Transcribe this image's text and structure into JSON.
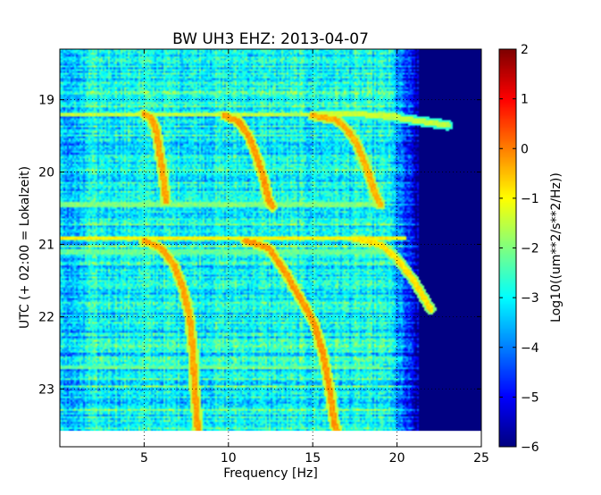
{
  "chart_data": {
    "type": "heatmap",
    "title": "BW UH3 EHZ: 2013-04-07",
    "xlabel": "Frequency [Hz]",
    "ylabel": "UTC (+ 02:00 = Lokalzeit)",
    "xlim": [
      0,
      25
    ],
    "ylim": [
      23.8,
      18.3
    ],
    "x_ticks": [
      5,
      10,
      15,
      20,
      25
    ],
    "y_ticks": [
      19,
      20,
      21,
      22,
      23
    ],
    "grid": true,
    "data_end_time": 23.58,
    "colormap": "jet",
    "colorbar": {
      "label": "Log10((um**2/s**2/Hz))",
      "range": [
        -6,
        2
      ],
      "ticks": [
        2,
        1,
        0,
        -1,
        -2,
        -3,
        -4,
        -5,
        -6
      ]
    },
    "background_level": -3.0,
    "high_freq_cutoff_hz": 19.5,
    "sweep_tracks": [
      {
        "points": [
          [
            5.0,
            19.2
          ],
          [
            5.4,
            19.25
          ],
          [
            5.7,
            19.4
          ],
          [
            5.9,
            19.7
          ],
          [
            6.1,
            20.0
          ],
          [
            6.3,
            20.4
          ]
        ],
        "level": -0.3
      },
      {
        "points": [
          [
            9.8,
            19.22
          ],
          [
            10.6,
            19.3
          ],
          [
            11.2,
            19.5
          ],
          [
            11.7,
            19.8
          ],
          [
            12.1,
            20.1
          ],
          [
            12.4,
            20.4
          ],
          [
            12.6,
            20.48
          ]
        ],
        "level": -0.2
      },
      {
        "points": [
          [
            15.0,
            19.22
          ],
          [
            16.4,
            19.28
          ],
          [
            17.0,
            19.4
          ],
          [
            17.6,
            19.6
          ],
          [
            18.2,
            19.95
          ],
          [
            18.7,
            20.3
          ],
          [
            19.0,
            20.45
          ]
        ],
        "level": -0.4
      },
      {
        "points": [
          [
            5.0,
            20.95
          ],
          [
            6.0,
            21.05
          ],
          [
            6.8,
            21.3
          ],
          [
            7.3,
            21.6
          ],
          [
            7.7,
            22.0
          ],
          [
            7.9,
            22.5
          ],
          [
            8.0,
            23.0
          ],
          [
            8.2,
            23.6
          ]
        ],
        "level": -0.3
      },
      {
        "points": [
          [
            11.0,
            20.95
          ],
          [
            12.4,
            21.05
          ],
          [
            13.4,
            21.4
          ],
          [
            14.4,
            21.8
          ],
          [
            15.1,
            22.1
          ],
          [
            15.6,
            22.5
          ],
          [
            16.0,
            23.0
          ],
          [
            16.3,
            23.5
          ],
          [
            16.5,
            23.6
          ]
        ],
        "level": -0.2
      },
      {
        "points": [
          [
            17.5,
            20.92
          ],
          [
            19.0,
            21.0
          ],
          [
            20.0,
            21.2
          ],
          [
            21.0,
            21.5
          ],
          [
            22.0,
            21.9
          ]
        ],
        "level": -0.8
      },
      {
        "points": [
          [
            15.5,
            19.2
          ],
          [
            18.0,
            19.2
          ],
          [
            20.0,
            19.25
          ],
          [
            21.5,
            19.3
          ],
          [
            23.0,
            19.35
          ]
        ],
        "level": -1.5
      }
    ],
    "horizontal_streaks": [
      {
        "time": 19.2,
        "f_max": 20.0,
        "level": -1.5
      },
      {
        "time": 20.45,
        "f_max": 19.0,
        "level": -2.0
      },
      {
        "time": 20.92,
        "f_max": 20.5,
        "level": -1.0
      },
      {
        "time": 21.1,
        "f_max": 20.0,
        "level": -2.2
      },
      {
        "time": 22.7,
        "f_max": 19.0,
        "level": -2.3
      }
    ]
  }
}
